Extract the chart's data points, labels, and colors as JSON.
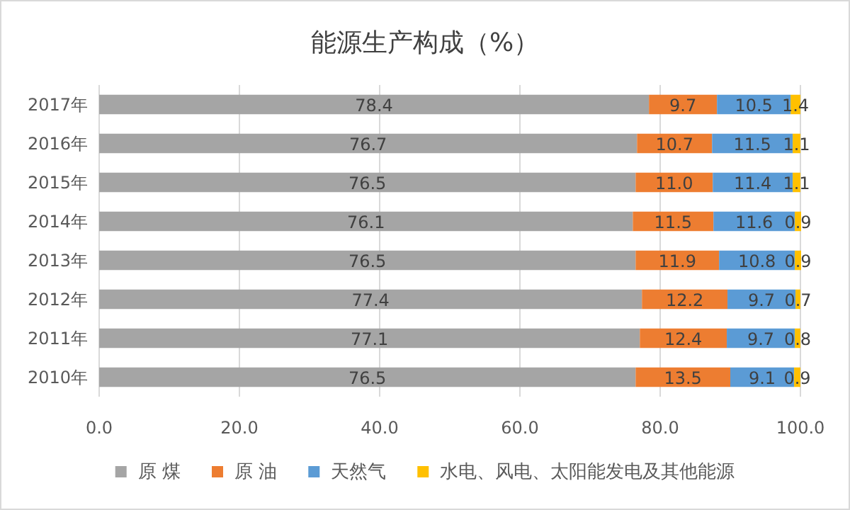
{
  "chart_data": {
    "type": "bar",
    "orientation": "horizontal",
    "stacked": true,
    "title": "能源生产构成（%）",
    "categories": [
      "2017年",
      "2016年",
      "2015年",
      "2014年",
      "2013年",
      "2012年",
      "2011年",
      "2010年"
    ],
    "series": [
      {
        "name": "原 煤",
        "color": "#a5a5a5",
        "values": [
          78.4,
          76.7,
          76.5,
          76.1,
          76.5,
          77.4,
          77.1,
          76.5
        ],
        "value_labels": [
          "78.4",
          "76.7",
          "76.5",
          "76.1",
          "76.5",
          "77.4",
          "77.1",
          "76.5"
        ]
      },
      {
        "name": "原 油",
        "color": "#ed7d31",
        "values": [
          9.7,
          10.7,
          11.0,
          11.5,
          11.9,
          12.2,
          12.4,
          13.5
        ],
        "value_labels": [
          "9.7",
          "10.7",
          "11.0",
          "11.5",
          "11.9",
          "12.2",
          "12.4",
          "13.5"
        ]
      },
      {
        "name": "天然气",
        "color": "#5b9bd5",
        "values": [
          10.5,
          11.5,
          11.4,
          11.6,
          10.8,
          9.7,
          9.7,
          9.1
        ],
        "value_labels": [
          "10.5",
          "11.5",
          "11.4",
          "11.6",
          "10.8",
          "9.7",
          "9.7",
          "9.1"
        ]
      },
      {
        "name": "水电、风电、太阳能发电及其他能源",
        "color": "#ffc000",
        "values": [
          1.4,
          1.1,
          1.1,
          0.9,
          0.9,
          0.7,
          0.8,
          0.9
        ],
        "value_labels": [
          "1.4",
          "1.1",
          "1.1",
          "0.9",
          "0.9",
          "0.7",
          "0.8",
          "0.9"
        ]
      }
    ],
    "xlim": [
      0,
      100
    ],
    "xticks": [
      {
        "value": 0,
        "label": "0.0"
      },
      {
        "value": 20,
        "label": "20.0"
      },
      {
        "value": 40,
        "label": "40.0"
      },
      {
        "value": 60,
        "label": "60.0"
      },
      {
        "value": 80,
        "label": "80.0"
      },
      {
        "value": 100,
        "label": "100.0"
      }
    ],
    "grid": "x",
    "legend": "bottom"
  }
}
